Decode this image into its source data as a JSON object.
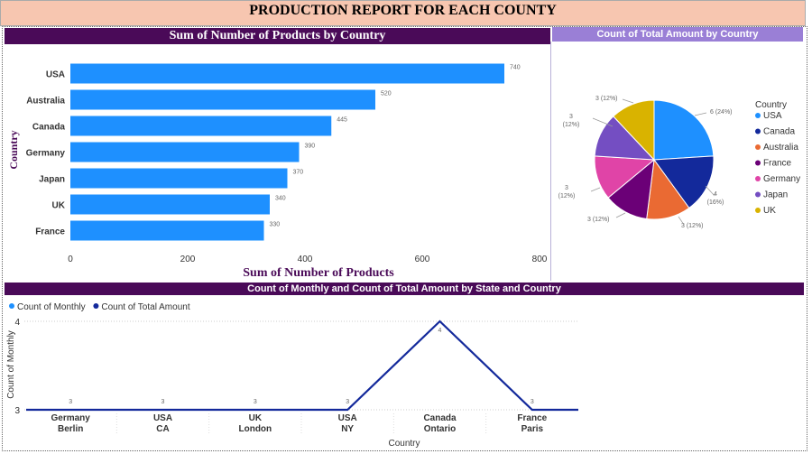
{
  "report_title": "PRODUCTION REPORT FOR EACH COUNTY",
  "colors": {
    "bar": "#1e90ff",
    "header_dark": "#4a0a58",
    "header_light": "#9a7fd6",
    "title_bg": "#f7c6b0",
    "line_series": "#13299b",
    "category_text": "#4a0a58"
  },
  "chart_data": [
    {
      "type": "bar",
      "orientation": "horizontal",
      "title": "Sum of Number of Products by Country",
      "categories": [
        "USA",
        "Australia",
        "Canada",
        "Germany",
        "Japan",
        "UK",
        "France"
      ],
      "values": [
        740,
        520,
        445,
        390,
        370,
        340,
        330
      ],
      "data_labels": [
        "740",
        "520",
        "445",
        "390",
        "370",
        "340",
        "330"
      ],
      "xlabel": "Sum of Number of Products",
      "ylabel": "Country",
      "xlim": [
        0,
        800
      ],
      "xticks": [
        0,
        200,
        400,
        600,
        800
      ],
      "grid": false
    },
    {
      "type": "pie",
      "title": "Count of Total Amount by Country",
      "legend_title": "Country",
      "legend_position": "right",
      "slices": [
        {
          "name": "USA",
          "value": 6,
          "label": "6 (24%)",
          "color": "#1e90ff"
        },
        {
          "name": "Canada",
          "value": 4,
          "label": "4 (16%)",
          "color": "#13299b"
        },
        {
          "name": "Australia",
          "value": 3,
          "label": "3 (12%)",
          "color": "#ea6a33"
        },
        {
          "name": "France",
          "value": 3,
          "label": "3 (12%)",
          "color": "#6b0077"
        },
        {
          "name": "Germany",
          "value": 3,
          "label": "3 (12%)",
          "color": "#e044a7"
        },
        {
          "name": "Japan",
          "value": 3,
          "label": "3 (12%)",
          "color": "#744ec2"
        },
        {
          "name": "UK",
          "value": 3,
          "label": "3 (12%)",
          "color": "#d9b300"
        }
      ]
    },
    {
      "type": "line",
      "title": "Count of Monthly and Count of Total Amount by State and Country",
      "legend_position": "top-left",
      "legend": [
        {
          "name": "Count of Monthly",
          "color": "#1e90ff"
        },
        {
          "name": "Count of Total Amount",
          "color": "#13299b"
        }
      ],
      "categories": [
        {
          "country": "Germany",
          "state": "Berlin"
        },
        {
          "country": "USA",
          "state": "CA"
        },
        {
          "country": "UK",
          "state": "London"
        },
        {
          "country": "USA",
          "state": "NY"
        },
        {
          "country": "Canada",
          "state": "Ontario"
        },
        {
          "country": "France",
          "state": "Paris"
        }
      ],
      "series": [
        {
          "name": "Count of Total Amount",
          "values": [
            3,
            3,
            3,
            3,
            4,
            3
          ]
        }
      ],
      "data_labels": [
        "3",
        "3",
        "3",
        "3",
        "4",
        "3"
      ],
      "xlabel": "Country",
      "ylabel": "Count of Monthly",
      "ylim": [
        3,
        4
      ],
      "yticks": [
        3,
        4
      ]
    }
  ]
}
